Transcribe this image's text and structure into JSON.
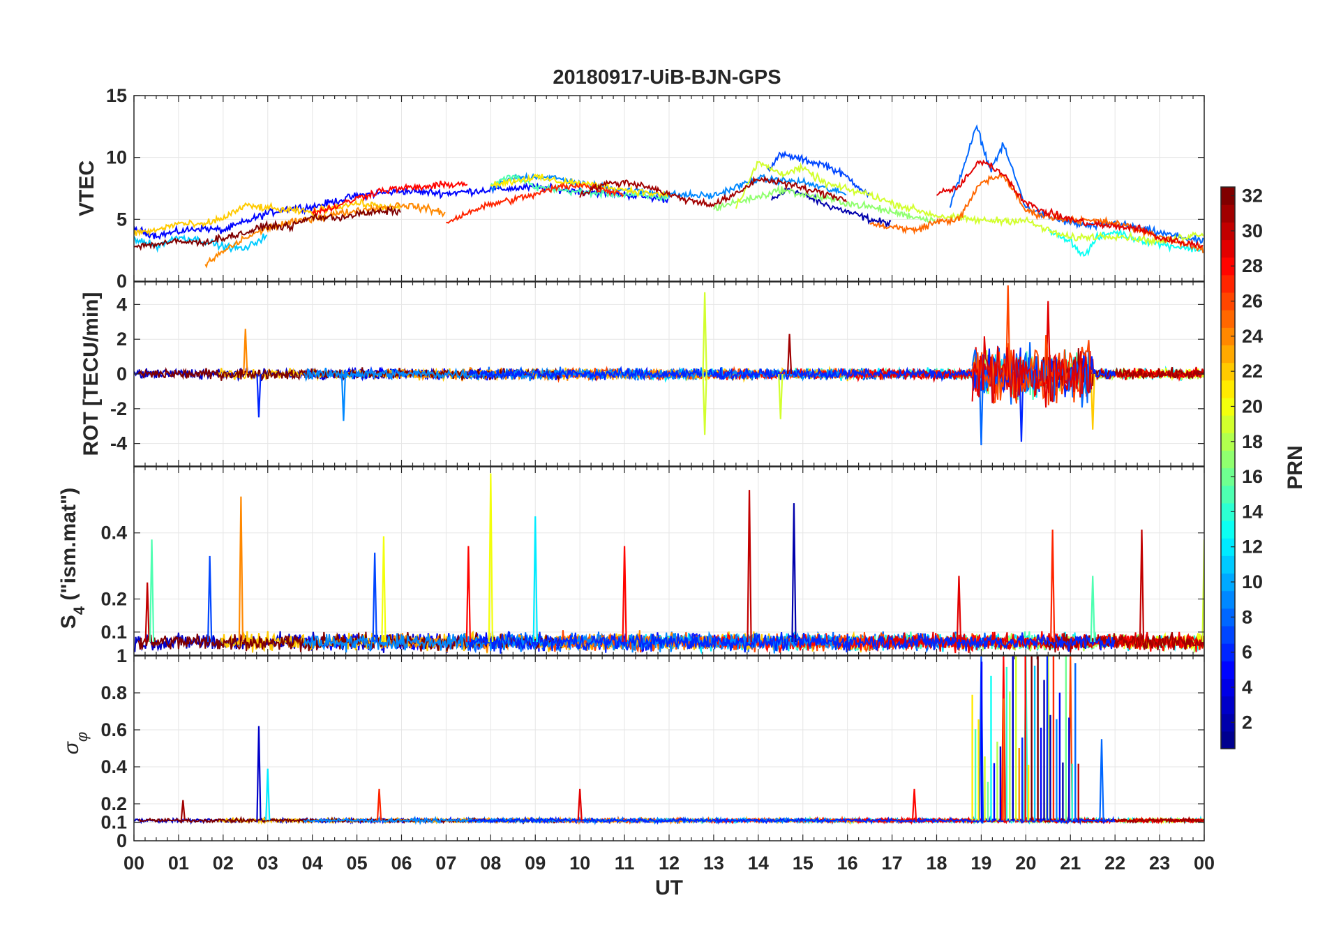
{
  "title": "20180917-UiB-BJN-GPS",
  "x_axis": {
    "label": "UT",
    "tick_labels": [
      "00",
      "01",
      "02",
      "03",
      "04",
      "05",
      "06",
      "07",
      "08",
      "09",
      "10",
      "11",
      "12",
      "13",
      "14",
      "15",
      "16",
      "17",
      "18",
      "19",
      "20",
      "21",
      "22",
      "23",
      "00"
    ],
    "range_hours": [
      0,
      24
    ]
  },
  "colorbar": {
    "label": "PRN",
    "range": [
      1,
      32
    ],
    "tick_labels": [
      "2",
      "4",
      "6",
      "8",
      "10",
      "12",
      "14",
      "16",
      "18",
      "20",
      "22",
      "24",
      "26",
      "28",
      "30",
      "32"
    ],
    "colormap": "jet",
    "colors": [
      "#00008f",
      "#0000ff",
      "#0080ff",
      "#00ffff",
      "#80ff80",
      "#ffff00",
      "#ff8000",
      "#ff0000",
      "#800000"
    ]
  },
  "chart_data": [
    {
      "type": "line",
      "panel": "vtec",
      "ylabel": "VTEC",
      "ylim": [
        0,
        15
      ],
      "y_ticks": [
        "0",
        "5",
        "10",
        "15"
      ],
      "grid": true,
      "series": [
        {
          "prn": 2,
          "x": [
            14.3,
            14.7,
            15,
            15.5,
            16,
            16.5,
            17
          ],
          "y": [
            6.5,
            7.5,
            7.0,
            6.2,
            5.6,
            5.0,
            4.6
          ]
        },
        {
          "prn": 5,
          "x": [
            0,
            0.5,
            1,
            1.5,
            2,
            2.5,
            3,
            3.5,
            4,
            5,
            6,
            7,
            8,
            9,
            10,
            11,
            12
          ],
          "y": [
            4.2,
            3.7,
            4.0,
            4.3,
            4.1,
            4.8,
            5.5,
            5.9,
            6.0,
            6.9,
            7.3,
            7.1,
            7.4,
            7.6,
            7.3,
            7.0,
            6.6
          ]
        },
        {
          "prn": 7,
          "x": [
            14.2,
            14.5,
            14.8,
            15,
            15.5,
            16,
            16.5
          ],
          "y": [
            9.0,
            10.2,
            10.0,
            9.8,
            9.4,
            8.4,
            6.9
          ]
        },
        {
          "prn": 8,
          "x": [
            18.3,
            18.9,
            19.2,
            19.5,
            19.8,
            20,
            20.5,
            21,
            21.5,
            22,
            22.5,
            23,
            24
          ],
          "y": [
            6.0,
            12.5,
            9.0,
            11.0,
            8.0,
            6.0,
            5.2,
            4.7,
            4.4,
            4.7,
            4.3,
            3.9,
            3.2
          ]
        },
        {
          "prn": 9,
          "x": [
            8,
            8.5,
            9,
            9.5,
            10,
            10.5,
            11,
            12,
            13,
            14,
            15,
            16
          ],
          "y": [
            7.4,
            8.3,
            8.5,
            8.3,
            7.9,
            7.6,
            7.4,
            7.0,
            6.9,
            8.3,
            8.0,
            7.0
          ]
        },
        {
          "prn": 11,
          "x": [
            0,
            0.5,
            1,
            1.5,
            2,
            2.5,
            3
          ],
          "y": [
            3.5,
            2.8,
            3.6,
            3.3,
            2.8,
            2.6,
            3.8
          ]
        },
        {
          "prn": 13,
          "x": [
            20.5,
            21,
            21.3,
            21.6,
            22,
            22.5,
            23,
            24
          ],
          "y": [
            4.0,
            3.3,
            2.0,
            3.5,
            4.0,
            3.4,
            3.0,
            2.5
          ]
        },
        {
          "prn": 15,
          "x": [
            8,
            8.5,
            9,
            10,
            11,
            12
          ],
          "y": [
            7.8,
            8.5,
            7.6,
            7.2,
            7.0,
            6.7
          ]
        },
        {
          "prn": 17,
          "x": [
            13,
            13.5,
            14,
            14.5,
            15,
            15.5,
            16,
            16.5,
            17,
            17.5,
            18
          ],
          "y": [
            5.9,
            6.4,
            6.8,
            7.4,
            7.0,
            6.7,
            6.3,
            6.0,
            5.6,
            5.2,
            4.9
          ]
        },
        {
          "prn": 19,
          "x": [
            13.5,
            14,
            14.5,
            15,
            15.5,
            16,
            16.5,
            17,
            18,
            19,
            20,
            20.5,
            21,
            22,
            23,
            24
          ],
          "y": [
            6.0,
            9.6,
            8.7,
            9.1,
            7.9,
            7.4,
            7.0,
            6.3,
            5.3,
            4.9,
            4.9,
            4.1,
            3.5,
            3.7,
            3.2,
            3.9
          ]
        },
        {
          "prn": 21,
          "x": [
            8,
            8.5,
            9,
            9.5,
            10,
            10.5,
            11,
            12
          ],
          "y": [
            7.8,
            8.1,
            8.4,
            8.1,
            7.9,
            7.7,
            7.4,
            6.9
          ]
        },
        {
          "prn": 22,
          "x": [
            0,
            0.5,
            1,
            1.5,
            2,
            2.5,
            3,
            3.5,
            4,
            4.5,
            5,
            5.5,
            6
          ],
          "y": [
            3.9,
            4.1,
            4.7,
            4.5,
            5.1,
            6.1,
            5.9,
            5.7,
            5.6,
            6.0,
            6.3,
            6.1,
            5.8
          ]
        },
        {
          "prn": 24,
          "x": [
            1.6,
            2,
            2.5,
            3,
            3.5,
            4,
            4.5,
            5,
            5.5,
            6,
            6.5,
            7
          ],
          "y": [
            1.3,
            2.4,
            3.5,
            4.3,
            4.7,
            5.1,
            5.4,
            5.7,
            5.9,
            6.2,
            5.9,
            5.5
          ]
        },
        {
          "prn": 25,
          "x": [
            16.5,
            17,
            17.5,
            18,
            18.5,
            19,
            19.5,
            20,
            20.5,
            21,
            22,
            23,
            24
          ],
          "y": [
            4.6,
            4.4,
            4.1,
            4.8,
            5.0,
            8.0,
            8.6,
            5.7,
            5.2,
            5.0,
            4.7,
            3.6,
            2.5
          ]
        },
        {
          "prn": 27,
          "x": [
            7,
            7.5,
            8,
            8.5,
            9,
            9.5,
            10,
            10.5,
            11
          ],
          "y": [
            4.7,
            5.6,
            6.2,
            6.6,
            7.0,
            7.6,
            7.8,
            7.4,
            7.1
          ]
        },
        {
          "prn": 28,
          "x": [
            4,
            4.5,
            5,
            5.5,
            6,
            6.5,
            7,
            7.5
          ],
          "y": [
            5.5,
            6.0,
            6.7,
            7.3,
            7.5,
            7.6,
            7.8,
            7.9
          ]
        },
        {
          "prn": 29,
          "x": [
            18,
            18.5,
            19,
            19.5,
            20,
            20.5,
            21,
            21.5,
            22,
            22.5,
            23,
            24
          ],
          "y": [
            7.0,
            7.6,
            9.8,
            8.7,
            6.3,
            5.5,
            5.0,
            4.6,
            4.4,
            4.3,
            3.5,
            2.8
          ]
        },
        {
          "prn": 31,
          "x": [
            10,
            10.5,
            11,
            11.5,
            12,
            12.5,
            13,
            13.5,
            14,
            14.5,
            15,
            16
          ],
          "y": [
            7.0,
            7.8,
            8.0,
            7.7,
            7.0,
            6.5,
            6.2,
            7.0,
            8.3,
            8.0,
            7.5,
            6.6
          ]
        },
        {
          "prn": 32,
          "x": [
            0,
            0.5,
            1,
            1.5,
            2,
            2.5,
            3,
            3.5,
            4,
            4.5,
            5,
            5.5,
            6
          ],
          "y": [
            2.8,
            3.0,
            3.2,
            3.1,
            3.5,
            3.9,
            4.5,
            4.4,
            5.2,
            5.1,
            5.4,
            5.6,
            5.7
          ]
        }
      ]
    },
    {
      "type": "line",
      "panel": "rot",
      "ylabel": "ROT [TECU/min]",
      "ylim": [
        -5.3,
        5.3
      ],
      "y_ticks": [
        "-4",
        "-2",
        "0",
        "2",
        "4"
      ],
      "grid": true,
      "summary": {
        "baseline": 0,
        "max": 5.1,
        "min": -4.1,
        "peak_activity_hours": [
          18.8,
          21.5
        ],
        "peak_prns": [
          8,
          26,
          29
        ]
      },
      "spikes": [
        {
          "x": 2.5,
          "y": 2.6,
          "prn": 24
        },
        {
          "x": 2.8,
          "y": -2.5,
          "prn": 6
        },
        {
          "x": 4.7,
          "y": -2.7,
          "prn": 9
        },
        {
          "x": 12.8,
          "y": 4.7,
          "prn": 19
        },
        {
          "x": 12.8,
          "y": -3.5,
          "prn": 19
        },
        {
          "x": 14.7,
          "y": 2.3,
          "prn": 31
        },
        {
          "x": 14.5,
          "y": -2.6,
          "prn": 19
        },
        {
          "x": 19.0,
          "y": -4.1,
          "prn": 8
        },
        {
          "x": 19.6,
          "y": 5.1,
          "prn": 26
        },
        {
          "x": 19.9,
          "y": -3.9,
          "prn": 6
        },
        {
          "x": 20.5,
          "y": 4.2,
          "prn": 29
        },
        {
          "x": 21.5,
          "y": -3.2,
          "prn": 22
        }
      ]
    },
    {
      "type": "line",
      "panel": "s4",
      "ylabel": "S4 (\"ism.mat\")",
      "ylabel_main": "S",
      "ylabel_sub": "4",
      "ylabel_suffix": " (\"ism.mat\")",
      "ylim": [
        0.03,
        0.6
      ],
      "y_ticks": [
        "0.1",
        "0.2",
        "0.4"
      ],
      "grid": true,
      "summary": {
        "baseline": 0.07
      },
      "spikes": [
        {
          "x": 0.3,
          "y": 0.25,
          "prn": 30
        },
        {
          "x": 0.4,
          "y": 0.38,
          "prn": 15
        },
        {
          "x": 1.7,
          "y": 0.33,
          "prn": 7
        },
        {
          "x": 2.4,
          "y": 0.51,
          "prn": 24
        },
        {
          "x": 5.4,
          "y": 0.34,
          "prn": 7
        },
        {
          "x": 5.6,
          "y": 0.39,
          "prn": 20
        },
        {
          "x": 7.5,
          "y": 0.36,
          "prn": 28
        },
        {
          "x": 8.0,
          "y": 0.58,
          "prn": 20
        },
        {
          "x": 9.0,
          "y": 0.45,
          "prn": 12
        },
        {
          "x": 11.0,
          "y": 0.36,
          "prn": 28
        },
        {
          "x": 13.8,
          "y": 0.53,
          "prn": 30
        },
        {
          "x": 14.8,
          "y": 0.49,
          "prn": 2
        },
        {
          "x": 18.5,
          "y": 0.27,
          "prn": 29
        },
        {
          "x": 20.6,
          "y": 0.41,
          "prn": 27
        },
        {
          "x": 21.5,
          "y": 0.27,
          "prn": 15
        },
        {
          "x": 22.6,
          "y": 0.41,
          "prn": 30
        },
        {
          "x": 24.0,
          "y": 0.38,
          "prn": 19
        }
      ]
    },
    {
      "type": "line",
      "panel": "sigma_phi",
      "ylabel": "σφ",
      "ylabel_main": "σ",
      "ylabel_sub": "φ",
      "ylim": [
        0,
        1
      ],
      "y_ticks": [
        "0",
        "0.1",
        "0.2",
        "0.4",
        "0.6",
        "0.8",
        "1"
      ],
      "grid": true,
      "summary": {
        "baseline": 0.11,
        "saturation_hours": [
          18.8,
          21.2
        ]
      },
      "spikes": [
        {
          "x": 1.1,
          "y": 0.22,
          "prn": 31
        },
        {
          "x": 2.8,
          "y": 0.62,
          "prn": 3
        },
        {
          "x": 3.0,
          "y": 0.39,
          "prn": 12
        },
        {
          "x": 5.5,
          "y": 0.28,
          "prn": 27
        },
        {
          "x": 10.0,
          "y": 0.28,
          "prn": 29
        },
        {
          "x": 17.5,
          "y": 0.28,
          "prn": 28
        },
        {
          "x": 19.0,
          "y": 1.0,
          "prn": 7
        },
        {
          "x": 19.5,
          "y": 1.0,
          "prn": 28
        },
        {
          "x": 20.0,
          "y": 1.0,
          "prn": 14
        },
        {
          "x": 20.5,
          "y": 1.0,
          "prn": 19
        },
        {
          "x": 21.0,
          "y": 1.0,
          "prn": 26
        },
        {
          "x": 21.7,
          "y": 0.55,
          "prn": 8
        }
      ]
    }
  ]
}
